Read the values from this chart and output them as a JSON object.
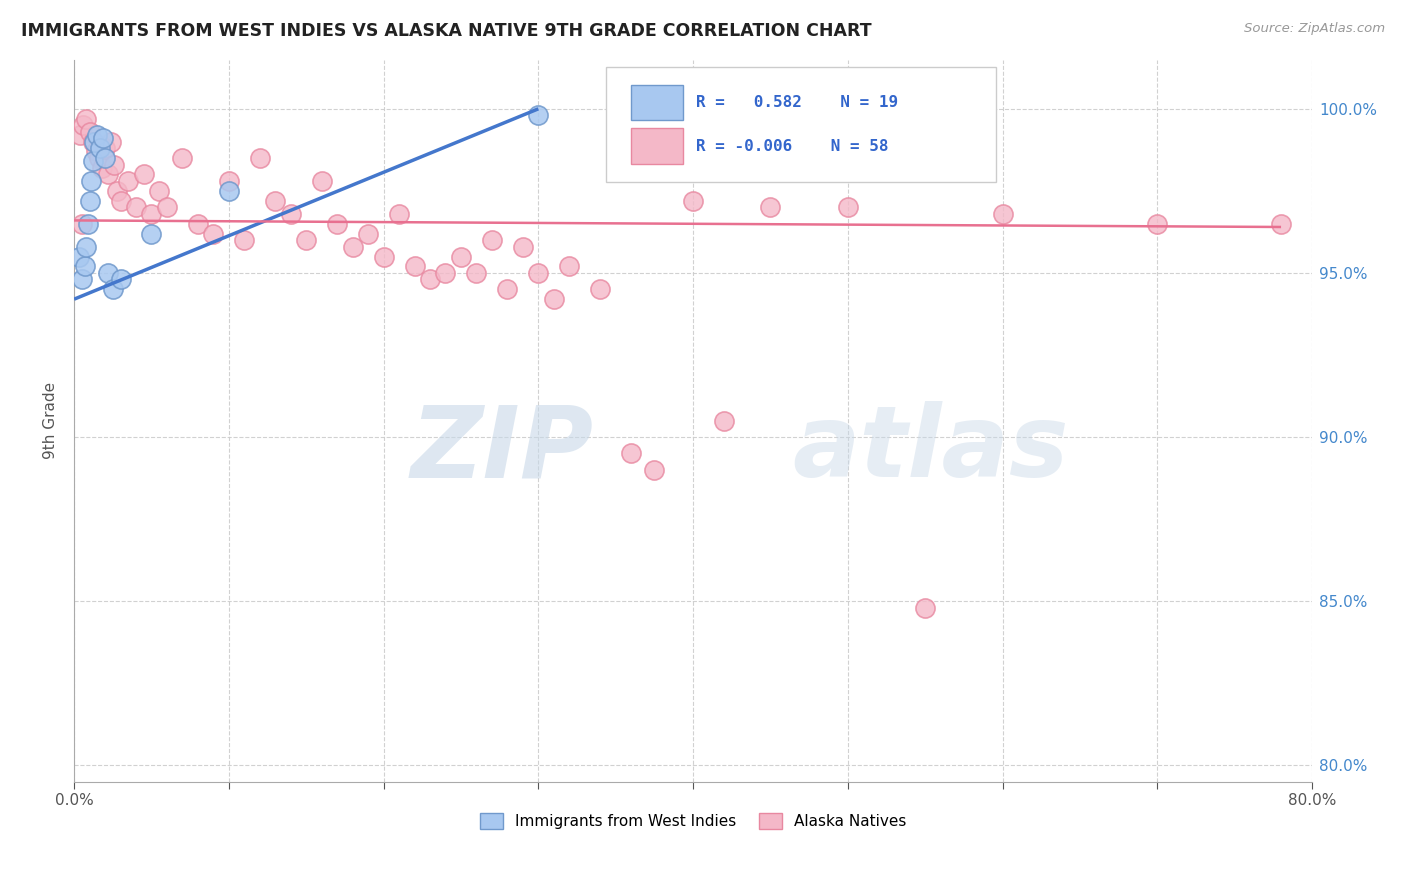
{
  "title": "IMMIGRANTS FROM WEST INDIES VS ALASKA NATIVE 9TH GRADE CORRELATION CHART",
  "source": "Source: ZipAtlas.com",
  "ylabel": "9th Grade",
  "xlim": [
    0.0,
    80.0
  ],
  "ylim": [
    79.5,
    101.5
  ],
  "x_tick_positions": [
    0,
    10,
    20,
    30,
    40,
    50,
    60,
    70,
    80
  ],
  "x_tick_labels": [
    "0.0%",
    "",
    "",
    "",
    "",
    "",
    "",
    "",
    "80.0%"
  ],
  "y_tick_positions": [
    80.0,
    85.0,
    90.0,
    95.0,
    100.0
  ],
  "y_tick_labels": [
    "80.0%",
    "85.0%",
    "90.0%",
    "95.0%",
    "100.0%"
  ],
  "blue_R": 0.582,
  "blue_N": 19,
  "pink_R": -0.006,
  "pink_N": 58,
  "legend_label_blue": "Immigrants from West Indies",
  "legend_label_pink": "Alaska Natives",
  "blue_color": "#a8c8f0",
  "pink_color": "#f4b8c8",
  "blue_edge": "#7099cc",
  "pink_edge": "#e888a0",
  "trend_blue": "#4477cc",
  "trend_pink": "#e87090",
  "watermark_zip": "ZIP",
  "watermark_atlas": "atlas",
  "background_color": "#ffffff",
  "grid_color": "#cccccc",
  "blue_dots_x": [
    0.3,
    0.5,
    0.7,
    0.8,
    0.9,
    1.0,
    1.1,
    1.2,
    1.3,
    1.5,
    1.7,
    1.9,
    2.0,
    2.2,
    2.5,
    3.0,
    5.0,
    10.0,
    30.0
  ],
  "blue_dots_y": [
    95.5,
    94.8,
    95.2,
    95.8,
    96.5,
    97.2,
    97.8,
    98.4,
    99.0,
    99.2,
    98.8,
    99.1,
    98.5,
    95.0,
    94.5,
    94.8,
    96.2,
    97.5,
    99.8
  ],
  "pink_dots_x": [
    0.4,
    0.6,
    0.8,
    1.0,
    1.2,
    1.4,
    1.6,
    1.8,
    2.0,
    2.2,
    2.4,
    2.6,
    2.8,
    3.0,
    3.5,
    4.0,
    4.5,
    5.0,
    5.5,
    6.0,
    7.0,
    8.0,
    9.0,
    10.0,
    11.0,
    12.0,
    13.0,
    14.0,
    15.0,
    16.0,
    17.0,
    18.0,
    19.0,
    20.0,
    21.0,
    22.0,
    23.0,
    24.0,
    25.0,
    26.0,
    27.0,
    28.0,
    29.0,
    30.0,
    31.0,
    32.0,
    34.0,
    36.0,
    37.5,
    40.0,
    42.0,
    45.0,
    50.0,
    55.0,
    60.0,
    70.0,
    78.0,
    0.5
  ],
  "pink_dots_y": [
    99.2,
    99.5,
    99.7,
    99.3,
    99.0,
    98.7,
    98.5,
    98.2,
    98.8,
    98.0,
    99.0,
    98.3,
    97.5,
    97.2,
    97.8,
    97.0,
    98.0,
    96.8,
    97.5,
    97.0,
    98.5,
    96.5,
    96.2,
    97.8,
    96.0,
    98.5,
    97.2,
    96.8,
    96.0,
    97.8,
    96.5,
    95.8,
    96.2,
    95.5,
    96.8,
    95.2,
    94.8,
    95.0,
    95.5,
    95.0,
    96.0,
    94.5,
    95.8,
    95.0,
    94.2,
    95.2,
    94.5,
    89.5,
    89.0,
    97.2,
    90.5,
    97.0,
    97.0,
    84.8,
    96.8,
    96.5,
    96.5,
    96.5
  ]
}
